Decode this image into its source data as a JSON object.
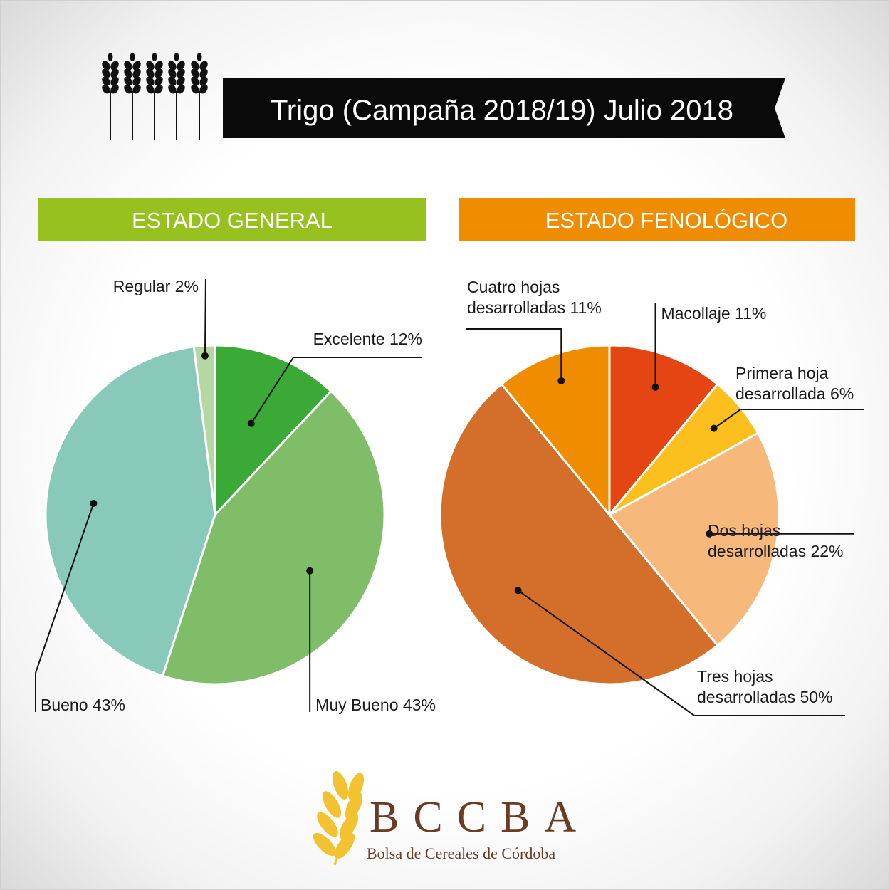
{
  "title": "Trigo (Campaña 2018/19) Julio 2018",
  "colors": {
    "title_bg": "#0a0a0a",
    "estado_general_header": "#97c11f",
    "estado_fenologico_header": "#f08c00",
    "logo_gold": "#f2c230",
    "logo_brown": "#6b3b24"
  },
  "header_icon": "wheat-stalks-icon",
  "logo": {
    "icon": "wheat-ear-icon",
    "name": "BCCBA",
    "subtitle": "Bolsa de Cereales de Córdoba"
  },
  "chart_data": [
    {
      "type": "pie",
      "title": "ESTADO GENERAL",
      "slices": [
        {
          "label": "Excelente 12%",
          "value": 12,
          "color": "#3aa935"
        },
        {
          "label": "Muy Bueno 43%",
          "value": 43,
          "color": "#7fbd68"
        },
        {
          "label": "Bueno 43%",
          "value": 43,
          "color": "#88c9ba"
        },
        {
          "label": "Regular 2%",
          "value": 2,
          "color": "#b5d7a4"
        }
      ]
    },
    {
      "type": "pie",
      "title": "ESTADO FENOLÓGICO",
      "slices": [
        {
          "label": "Macollaje 11%",
          "value": 11,
          "color": "#e54512"
        },
        {
          "label": "Primera hoja desarrollada 6%",
          "value": 6,
          "color": "#fbc01e"
        },
        {
          "label": "Dos hojas desarrolladas 22%",
          "value": 22,
          "color": "#f7b87c"
        },
        {
          "label": "Tres hojas desarrolladas 50%",
          "value": 50,
          "color": "#d36e2b"
        },
        {
          "label": "Cuatro hojas desarrolladas 11%",
          "value": 11,
          "color": "#f08c00"
        }
      ]
    }
  ]
}
